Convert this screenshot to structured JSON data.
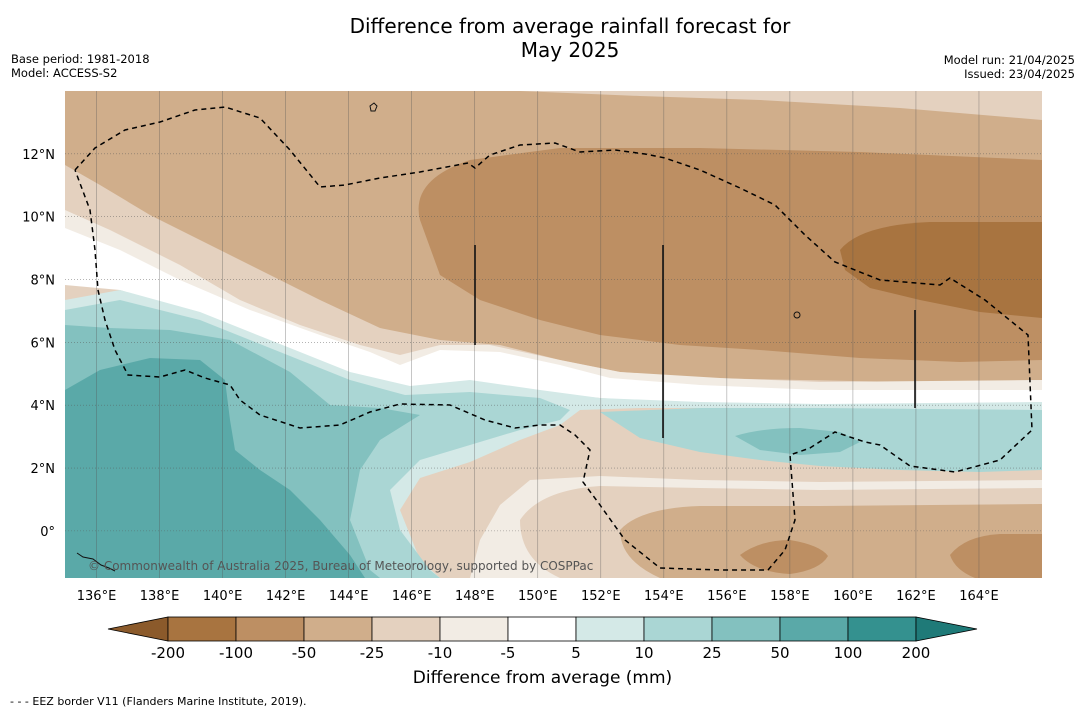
{
  "title_line1": "Difference from average rainfall forecast for",
  "title_line2": "May 2025",
  "meta_left": [
    "Base period: 1981-2018",
    "Model: ACCESS-S2"
  ],
  "meta_right": [
    "Model run: 21/04/2025",
    "Issued: 23/04/2025"
  ],
  "copyright": "© Commonwealth of Australia 2025, Bureau of Meteorology, supported by COSPPac",
  "lon_labels": [
    "136°E",
    "138°E",
    "140°E",
    "142°E",
    "144°E",
    "146°E",
    "148°E",
    "150°E",
    "152°E",
    "154°E",
    "156°E",
    "158°E",
    "160°E",
    "162°E",
    "164°E"
  ],
  "lat_labels": [
    "12°N",
    "10°N",
    "8°N",
    "6°N",
    "4°N",
    "2°N",
    "0°"
  ],
  "colorbar": {
    "ticks": [
      "-200",
      "-100",
      "-50",
      "-25",
      "-10",
      "-5",
      "5",
      "10",
      "25",
      "50",
      "100",
      "200"
    ],
    "colors": [
      "#a87440",
      "#bd8f63",
      "#d0ae8b",
      "#e4d1bf",
      "#f2ece4",
      "#ffffff",
      "#d4e9e7",
      "#aad6d4",
      "#83c1bf",
      "#5aa9a8",
      "#34918f"
    ],
    "low_color": "#8b5a2b",
    "high_color": "#1f7a78",
    "label": "Difference from average (mm)"
  },
  "footnote": "- - - EEZ border V11 (Flanders Marine Institute, 2019).",
  "chart_data": {
    "type": "heatmap",
    "title": "Difference from average rainfall forecast for May 2025",
    "variable": "Difference from average (mm)",
    "x_axis": "longitude",
    "y_axis": "latitude",
    "lon_range_deg_e": [
      135,
      166
    ],
    "lat_range_deg_n": [
      -1.5,
      14
    ],
    "lon_ticks": [
      136,
      138,
      140,
      142,
      144,
      146,
      148,
      150,
      152,
      154,
      156,
      158,
      160,
      162,
      164
    ],
    "lat_ticks": [
      12,
      10,
      8,
      6,
      4,
      2,
      0
    ],
    "levels_mm": [
      -200,
      -100,
      -50,
      -25,
      -10,
      -5,
      5,
      10,
      25,
      50,
      100,
      200
    ],
    "grid": true,
    "overlay": "EEZ border (dashed)"
  }
}
